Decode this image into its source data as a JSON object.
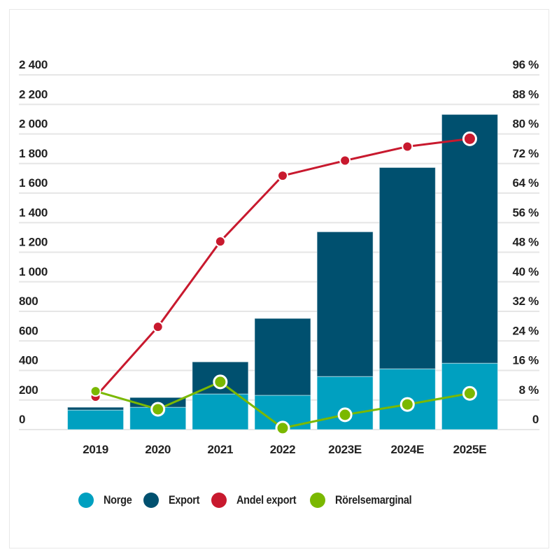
{
  "chart_data": {
    "type": "bar",
    "stacked": true,
    "title": "",
    "xlabel": "",
    "ylabel": "",
    "y2label": "",
    "categories": [
      "2019",
      "2020",
      "2021",
      "2022",
      "2023E",
      "2024E",
      "2025E"
    ],
    "series": [
      {
        "name": "Norge",
        "type": "bar",
        "axis": "left",
        "color": "#00a0c0",
        "values": [
          132,
          151,
          241,
          232,
          359,
          411,
          449
        ]
      },
      {
        "name": "Export",
        "type": "bar",
        "axis": "left",
        "color": "#00506f",
        "values": [
          19,
          66,
          217,
          520,
          979,
          1362,
          1683
        ]
      },
      {
        "name": "Andel export",
        "type": "line",
        "axis": "right",
        "color": "#c8192e",
        "values": [
          8.9,
          27.8,
          50.9,
          68.7,
          72.8,
          76.6,
          78.7
        ]
      },
      {
        "name": "Rörelsemarginal",
        "type": "line",
        "axis": "right",
        "color": "#7ab800",
        "values": [
          10.4,
          5.5,
          12.9,
          0.4,
          4.0,
          6.8,
          9.8
        ]
      }
    ],
    "ylim": [
      0,
      2400
    ],
    "y2lim": [
      0,
      96
    ],
    "yticks": [
      "0",
      "200",
      "400",
      "600",
      "800",
      "1 000",
      "1 200",
      "1 400",
      "1 600",
      "1 800",
      "2 000",
      "2 200",
      "2 400"
    ],
    "y2ticks": [
      "0",
      "8 %",
      "16 %",
      "24 %",
      "32 %",
      "40 %",
      "48 %",
      "56 %",
      "64 %",
      "72 %",
      "80 %",
      "88 %",
      "96 %"
    ],
    "grid": true,
    "legend_position": "bottom",
    "highlighted_points": {
      "Andel export": [
        6
      ],
      "Rörelsemarginal": [
        1,
        2,
        3,
        4,
        5,
        6
      ]
    }
  },
  "legend": [
    {
      "label": "Norge",
      "color": "#00a0c0"
    },
    {
      "label": "Export",
      "color": "#00506f"
    },
    {
      "label": "Andel export",
      "color": "#c8192e"
    },
    {
      "label": "Rörelsemarginal",
      "color": "#7ab800"
    }
  ]
}
